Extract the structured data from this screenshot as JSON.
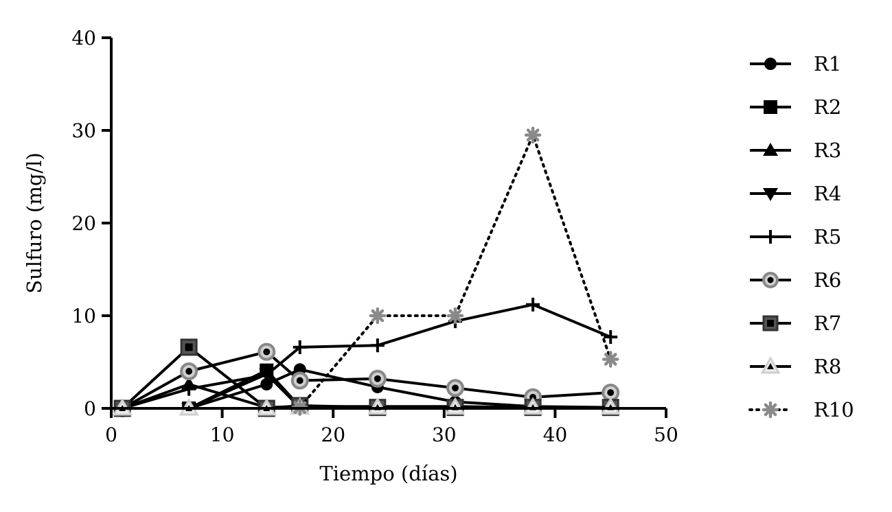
{
  "chart_data": {
    "type": "line",
    "title": "",
    "xlabel": "Tiempo (días)",
    "ylabel": "Sulfuro (mg/l)",
    "xlim": [
      0,
      50
    ],
    "ylim": [
      0,
      40
    ],
    "xticks": [
      0,
      10,
      20,
      30,
      40,
      50
    ],
    "yticks": [
      0,
      10,
      20,
      30,
      40
    ],
    "grid": false,
    "legend_position": "right",
    "series": [
      {
        "name": "R1",
        "marker": "circle",
        "line": "solid",
        "color": "#000000",
        "x": [
          1,
          7,
          14,
          17,
          24,
          31,
          38,
          45
        ],
        "y": [
          0,
          0,
          2.6,
          4.2,
          2.3,
          0.7,
          0.2,
          0.1
        ]
      },
      {
        "name": "R2",
        "marker": "square",
        "line": "solid",
        "color": "#000000",
        "x": [
          1,
          7,
          14,
          17,
          24,
          31,
          38,
          45
        ],
        "y": [
          0,
          0,
          4.1,
          0.2,
          0.2,
          0.2,
          0.1,
          0.1
        ]
      },
      {
        "name": "R3",
        "marker": "triangle-up",
        "line": "solid",
        "color": "#000000",
        "x": [
          1,
          7,
          14,
          17,
          24,
          31,
          38,
          45
        ],
        "y": [
          0,
          2.6,
          0.1,
          0.2,
          0.1,
          0.1,
          0.1,
          0.1
        ]
      },
      {
        "name": "R4",
        "marker": "triangle-down",
        "line": "solid",
        "color": "#000000",
        "x": [
          1,
          7,
          14,
          17,
          24,
          31,
          38,
          45
        ],
        "y": [
          0,
          0,
          3.7,
          0.1,
          0.1,
          0.1,
          0.1,
          0.1
        ]
      },
      {
        "name": "R5",
        "marker": "plus",
        "line": "solid",
        "color": "#000000",
        "x": [
          1,
          7,
          14,
          17,
          24,
          31,
          38,
          45
        ],
        "y": [
          0,
          2.1,
          3.6,
          6.6,
          6.8,
          9.4,
          11.2,
          7.7
        ]
      },
      {
        "name": "R6",
        "marker": "circle-ring",
        "line": "solid",
        "color": "#888888",
        "x": [
          1,
          7,
          14,
          17,
          24,
          31,
          38,
          45
        ],
        "y": [
          0,
          4.0,
          6.1,
          3.0,
          3.2,
          2.2,
          1.2,
          1.7
        ]
      },
      {
        "name": "R7",
        "marker": "square-ring",
        "line": "solid",
        "color": "#444444",
        "x": [
          1,
          7,
          14,
          17,
          24,
          31,
          38,
          45
        ],
        "y": [
          0,
          6.6,
          0,
          0.3,
          0.1,
          0.1,
          0.1,
          0.1
        ]
      },
      {
        "name": "R8",
        "marker": "triangle-ring",
        "line": "solid",
        "color": "#dddddd",
        "x": [
          1,
          7,
          14,
          17,
          24,
          31,
          38,
          45
        ],
        "y": [
          0,
          0,
          0,
          0.1,
          0.1,
          0.1,
          0.1,
          0.1
        ]
      },
      {
        "name": "R10",
        "marker": "star",
        "line": "dotted",
        "color": "#888888",
        "x": [
          17,
          24,
          31,
          38,
          45
        ],
        "y": [
          0.1,
          10.0,
          10.0,
          29.5,
          5.3
        ]
      }
    ]
  }
}
